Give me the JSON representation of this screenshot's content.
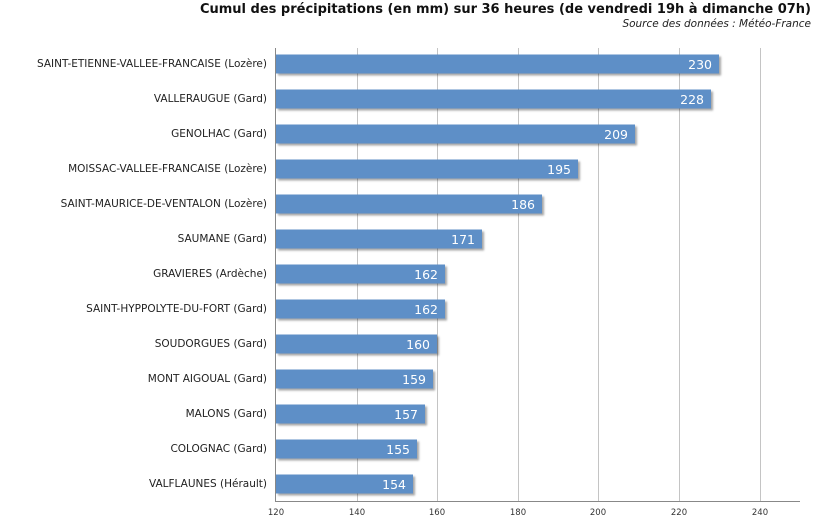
{
  "chart_data": {
    "type": "bar",
    "orientation": "horizontal",
    "title": "Cumul des précipitations (en mm) sur 36 heures (de vendredi 19h à dimanche 07h)",
    "subtitle": "Source des données : Météo-France",
    "xlabel": "",
    "ylabel": "",
    "xlim": [
      120,
      250
    ],
    "xticks": [
      "120",
      "140",
      "160",
      "180",
      "200",
      "220",
      "240"
    ],
    "grid": true,
    "legend": null,
    "bar_color": "#5e8fc7",
    "categories": [
      "SAINT-ETIENNE-VALLEE-FRANCAISE (Lozère)",
      "VALLERAUGUE (Gard)",
      "GENOLHAC (Gard)",
      "MOISSAC-VALLEE-FRANCAISE (Lozère)",
      "SAINT-MAURICE-DE-VENTALON (Lozère)",
      "SAUMANE (Gard)",
      "GRAVIERES (Ardèche)",
      "SAINT-HYPPOLYTE-DU-FORT (Gard)",
      "SOUDORGUES (Gard)",
      "MONT AIGOUAL (Gard)",
      "MALONS (Gard)",
      "COLOGNAC (Gard)",
      "VALFLAUNES (Hérault)"
    ],
    "values": [
      230,
      228,
      209,
      195,
      186,
      171,
      162,
      162,
      160,
      159,
      157,
      155,
      154
    ],
    "value_labels": [
      "230",
      "228",
      "209",
      "195",
      "186",
      "171",
      "162",
      "162",
      "160",
      "159",
      "157",
      "155",
      "154"
    ]
  }
}
